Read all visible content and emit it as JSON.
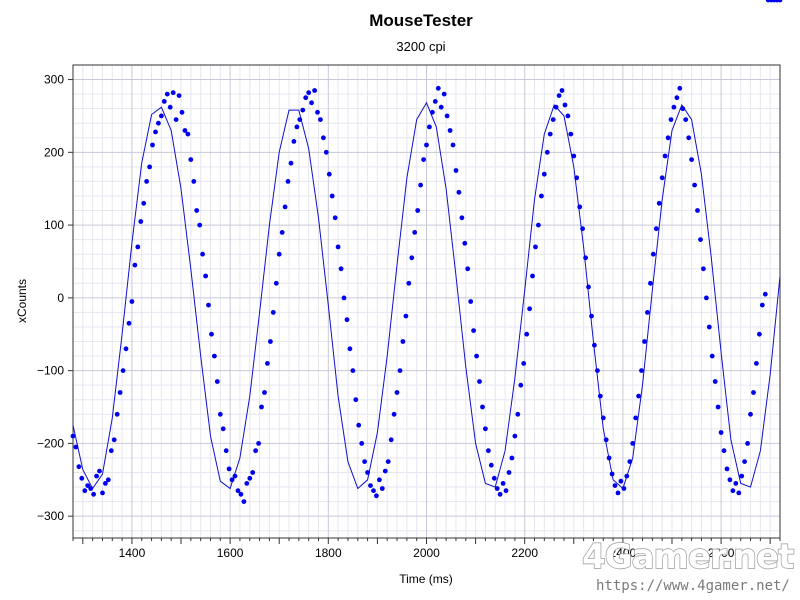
{
  "chart_data": {
    "type": "scatter",
    "title": "MouseTester",
    "subtitle": "3200 cpi",
    "xlabel": "Time (ms)",
    "ylabel": "xCounts",
    "xlim": [
      1280,
      2720
    ],
    "ylim": [
      -330,
      320
    ],
    "x_ticks": [
      1400,
      1600,
      1800,
      2000,
      2200,
      2400,
      2600
    ],
    "x_tick_labels": [
      "1400",
      "1600",
      "1800",
      "2000",
      "2200",
      "2400",
      "2600"
    ],
    "y_ticks": [
      300,
      200,
      100,
      0,
      -100,
      -200,
      -300
    ],
    "y_tick_labels": [
      "300",
      "200",
      "100",
      "0",
      "−100",
      "−200",
      "−300"
    ],
    "grid": true,
    "marker_color": "#0000ee",
    "line_color": "#1010cc",
    "fit_curve": {
      "x": [
        1280,
        1300,
        1320,
        1340,
        1360,
        1380,
        1400,
        1420,
        1440,
        1460,
        1480,
        1500,
        1520,
        1540,
        1560,
        1580,
        1600,
        1620,
        1640,
        1660,
        1680,
        1700,
        1720,
        1740,
        1760,
        1780,
        1800,
        1820,
        1840,
        1860,
        1880,
        1900,
        1920,
        1940,
        1960,
        1980,
        2000,
        2020,
        2040,
        2060,
        2080,
        2100,
        2120,
        2140,
        2160,
        2180,
        2200,
        2220,
        2240,
        2260,
        2280,
        2300,
        2320,
        2340,
        2360,
        2380,
        2400,
        2420,
        2440,
        2460,
        2480,
        2500,
        2520,
        2540,
        2560,
        2580,
        2600,
        2620,
        2640,
        2660,
        2680,
        2700,
        2720
      ],
      "y": [
        -175,
        -236,
        -262,
        -242,
        -165,
        -50,
        75,
        185,
        252,
        262,
        230,
        150,
        40,
        -80,
        -190,
        -252,
        -262,
        -220,
        -135,
        -20,
        100,
        200,
        258,
        258,
        205,
        110,
        -10,
        -135,
        -225,
        -262,
        -250,
        -185,
        -80,
        45,
        165,
        245,
        268,
        235,
        150,
        30,
        -95,
        -200,
        -255,
        -260,
        -210,
        -110,
        10,
        135,
        225,
        265,
        250,
        180,
        70,
        -60,
        -180,
        -250,
        -262,
        -220,
        -120,
        10,
        135,
        230,
        265,
        245,
        170,
        55,
        -75,
        -195,
        -255,
        -260,
        -210,
        -105,
        30
      ]
    },
    "points_note_free": true,
    "points_x": [
      1280,
      1286,
      1292,
      1298,
      1304,
      1310,
      1316,
      1322,
      1328,
      1334,
      1340,
      1346,
      1352,
      1358,
      1364,
      1370,
      1376,
      1382,
      1388,
      1394,
      1400,
      1406,
      1412,
      1418,
      1424,
      1430,
      1436,
      1442,
      1448,
      1454,
      1460,
      1466,
      1472,
      1478,
      1484,
      1490,
      1496,
      1502,
      1508,
      1514,
      1520,
      1526,
      1532,
      1538,
      1544,
      1550,
      1556,
      1562,
      1568,
      1574,
      1580,
      1586,
      1592,
      1598,
      1604,
      1610,
      1616,
      1622,
      1628,
      1634,
      1640,
      1646,
      1652,
      1658,
      1664,
      1670,
      1676,
      1682,
      1688,
      1694,
      1700,
      1706,
      1712,
      1718,
      1724,
      1730,
      1736,
      1742,
      1748,
      1754,
      1760,
      1766,
      1772,
      1778,
      1784,
      1790,
      1796,
      1802,
      1808,
      1814,
      1820,
      1826,
      1832,
      1838,
      1844,
      1850,
      1856,
      1862,
      1868,
      1874,
      1880,
      1886,
      1892,
      1898,
      1904,
      1910,
      1916,
      1922,
      1928,
      1934,
      1940,
      1946,
      1952,
      1958,
      1964,
      1970,
      1976,
      1982,
      1988,
      1994,
      2000,
      2006,
      2012,
      2018,
      2024,
      2030,
      2036,
      2042,
      2048,
      2054,
      2060,
      2066,
      2072,
      2078,
      2084,
      2090,
      2096,
      2102,
      2108,
      2114,
      2120,
      2126,
      2132,
      2138,
      2144,
      2150,
      2156,
      2162,
      2168,
      2174,
      2180,
      2186,
      2192,
      2198,
      2204,
      2210,
      2216,
      2222,
      2228,
      2234,
      2240,
      2246,
      2252,
      2258,
      2264,
      2270,
      2276,
      2282,
      2288,
      2294,
      2300,
      2306,
      2312,
      2318,
      2324,
      2330,
      2336,
      2342,
      2348,
      2354,
      2360,
      2366,
      2372,
      2378,
      2384,
      2390,
      2396,
      2402,
      2408,
      2414,
      2420,
      2426,
      2432,
      2438,
      2444,
      2450,
      2456,
      2462,
      2468,
      2474,
      2480,
      2486,
      2492,
      2498,
      2504,
      2510,
      2516,
      2522,
      2528,
      2534,
      2540,
      2546,
      2552,
      2558,
      2564,
      2570,
      2576,
      2582,
      2588,
      2594,
      2600,
      2606,
      2612,
      2618,
      2624,
      2630,
      2636,
      2642,
      2648,
      2654,
      2660,
      2666,
      2672,
      2678,
      2684,
      2690,
      2696,
      2702,
      2708,
      2714,
      2720
    ],
    "points_y": [
      -190,
      -205,
      -232,
      -248,
      -265,
      -258,
      -262,
      -270,
      -245,
      -238,
      -268,
      -255,
      -250,
      -210,
      -195,
      -160,
      -130,
      -100,
      -70,
      -35,
      -5,
      45,
      70,
      105,
      130,
      160,
      180,
      210,
      228,
      240,
      250,
      270,
      280,
      262,
      282,
      245,
      278,
      255,
      230,
      225,
      190,
      160,
      120,
      100,
      60,
      30,
      -10,
      -50,
      -80,
      -115,
      -160,
      -180,
      -210,
      -235,
      -250,
      -245,
      -265,
      -270,
      -280,
      -255,
      -248,
      -240,
      -210,
      -200,
      -150,
      -130,
      -90,
      -60,
      -20,
      20,
      60,
      90,
      125,
      160,
      185,
      215,
      235,
      245,
      258,
      275,
      282,
      268,
      285,
      255,
      245,
      220,
      200,
      170,
      140,
      110,
      70,
      40,
      0,
      -30,
      -70,
      -100,
      -140,
      -175,
      -200,
      -225,
      -240,
      -258,
      -265,
      -272,
      -250,
      -262,
      -238,
      -225,
      -195,
      -160,
      -130,
      -100,
      -60,
      -25,
      20,
      55,
      90,
      120,
      155,
      190,
      210,
      235,
      255,
      270,
      288,
      262,
      280,
      250,
      230,
      210,
      175,
      145,
      110,
      75,
      40,
      -5,
      -45,
      -80,
      -115,
      -150,
      -180,
      -210,
      -230,
      -248,
      -262,
      -270,
      -255,
      -265,
      -240,
      -220,
      -190,
      -160,
      -120,
      -90,
      -50,
      -15,
      30,
      70,
      100,
      140,
      170,
      200,
      225,
      245,
      262,
      278,
      285,
      265,
      250,
      225,
      195,
      165,
      125,
      95,
      55,
      15,
      -25,
      -65,
      -100,
      -135,
      -165,
      -195,
      -220,
      -242,
      -258,
      -268,
      -252,
      -262,
      -245,
      -225,
      -200,
      -165,
      -135,
      -100,
      -60,
      -20,
      20,
      60,
      95,
      130,
      165,
      195,
      220,
      245,
      262,
      275,
      288,
      260,
      245,
      220,
      190,
      155,
      120,
      80,
      40,
      0,
      -40,
      -80,
      -115,
      -150,
      -185,
      -210,
      -235,
      -250,
      -265,
      -255,
      -268,
      -245,
      -225,
      -200,
      -160,
      -130,
      -90,
      -50,
      -10,
      5
    ]
  },
  "watermark": {
    "logo": "4Gamer.net",
    "url": "https://www.4gamer.net/"
  }
}
